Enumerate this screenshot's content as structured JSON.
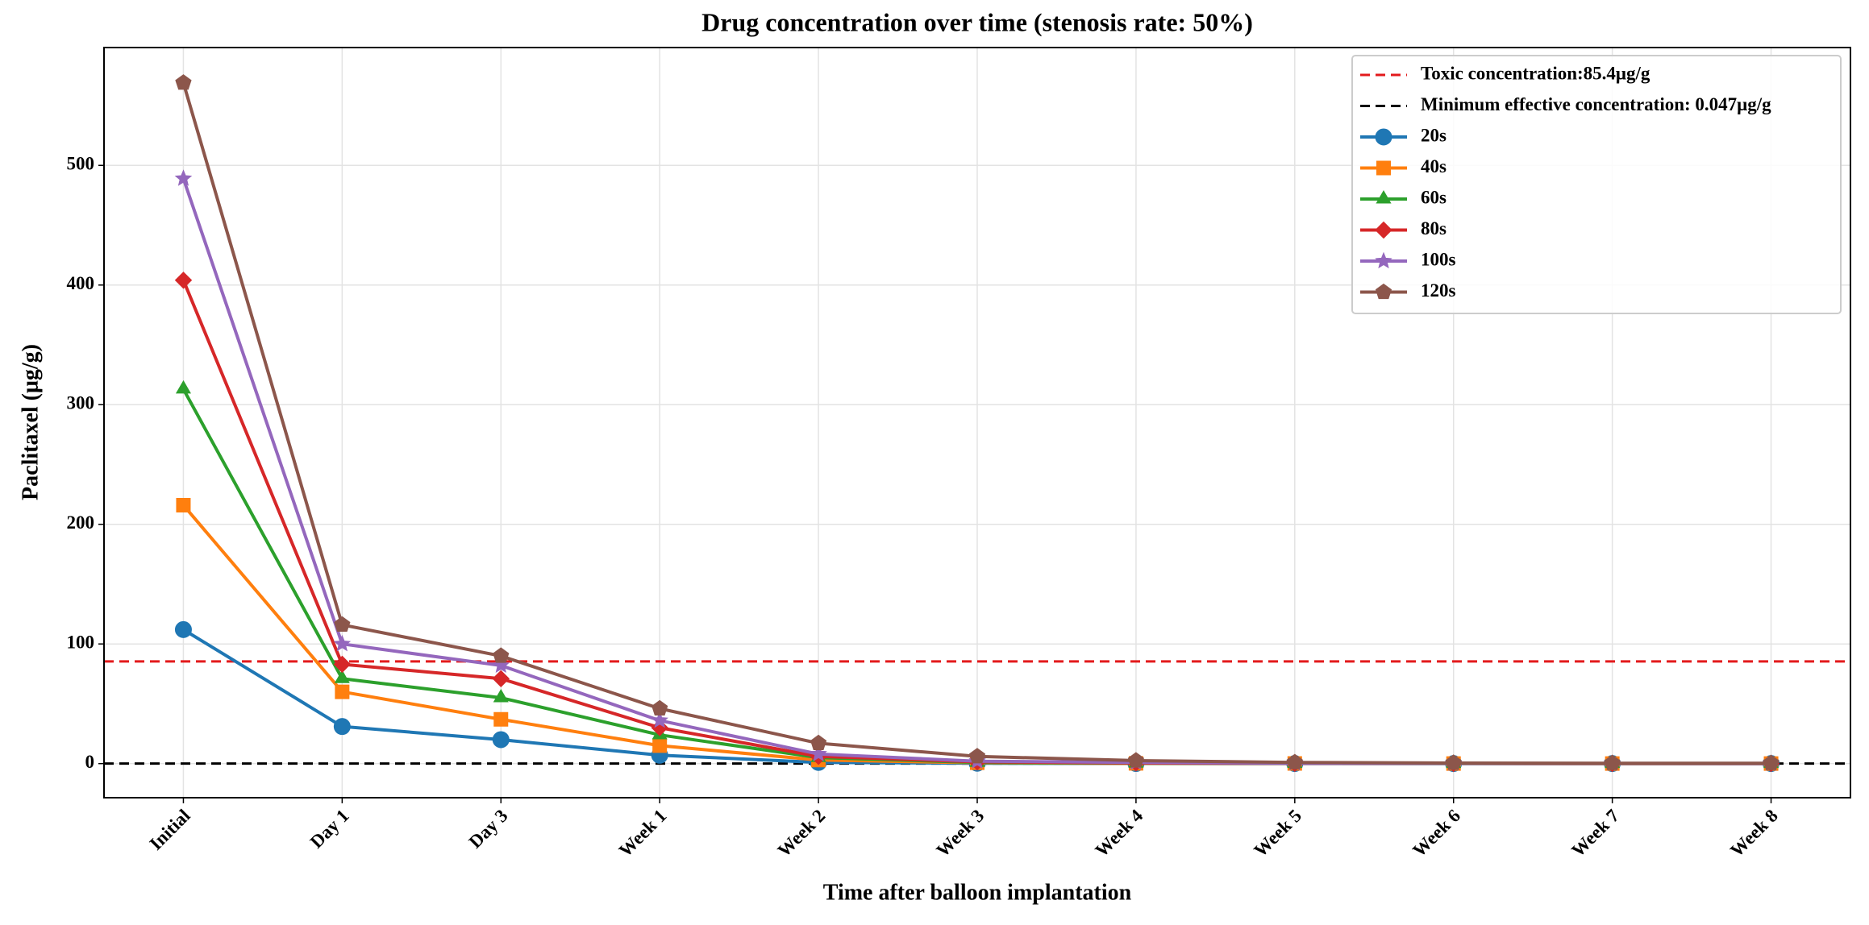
{
  "chart_data": {
    "type": "line",
    "title": "Drug concentration over time (stenosis rate: 50%)",
    "x_label": "Time after balloon implantation",
    "y_label": "Paclitaxel (μg/g)",
    "categories": [
      "Initial",
      "Day 1",
      "Day 3",
      "Week 1",
      "Week 2",
      "Week 3",
      "Week 4",
      "Week 5",
      "Week 6",
      "Week 7",
      "Week 8"
    ],
    "series": [
      {
        "name": "20s",
        "color": "#1f77b4",
        "marker": "circle",
        "values": [
          112,
          31,
          20,
          7,
          1,
          0.3,
          0.1,
          0.05,
          0.05,
          0.05,
          0.05
        ]
      },
      {
        "name": "40s",
        "color": "#ff7f0e",
        "marker": "square",
        "values": [
          216,
          60,
          37,
          15,
          3,
          0.7,
          0.2,
          0.1,
          0.05,
          0.05,
          0.05
        ]
      },
      {
        "name": "60s",
        "color": "#2ca02c",
        "marker": "triangle",
        "values": [
          313,
          71,
          55,
          24,
          5,
          1,
          0.3,
          0.1,
          0.05,
          0.05,
          0.05
        ]
      },
      {
        "name": "80s",
        "color": "#d62728",
        "marker": "diamond",
        "values": [
          404,
          83,
          71,
          30,
          6,
          1.5,
          0.5,
          0.2,
          0.1,
          0.05,
          0.05
        ]
      },
      {
        "name": "100s",
        "color": "#9467bd",
        "marker": "star",
        "values": [
          489,
          100,
          82,
          36,
          8,
          2,
          1,
          0.3,
          0.1,
          0.1,
          0.05
        ]
      },
      {
        "name": "120s",
        "color": "#8c564b",
        "marker": "pentagon",
        "values": [
          569,
          116,
          90,
          46,
          17,
          6,
          2.5,
          1,
          0.5,
          0.3,
          0.3
        ]
      }
    ],
    "reference_lines": [
      {
        "name": "Toxic concentration:85.4μg/g",
        "value": 85.4,
        "color": "#e31a1c"
      },
      {
        "name": "Minimum effective concentration: 0.047μg/g",
        "value": 0.047,
        "color": "#000000"
      }
    ],
    "ylim": [
      -28.5,
      598.5
    ],
    "yticks": [
      0,
      100,
      200,
      300,
      400,
      500
    ],
    "grid": true,
    "legend": "upper right"
  }
}
